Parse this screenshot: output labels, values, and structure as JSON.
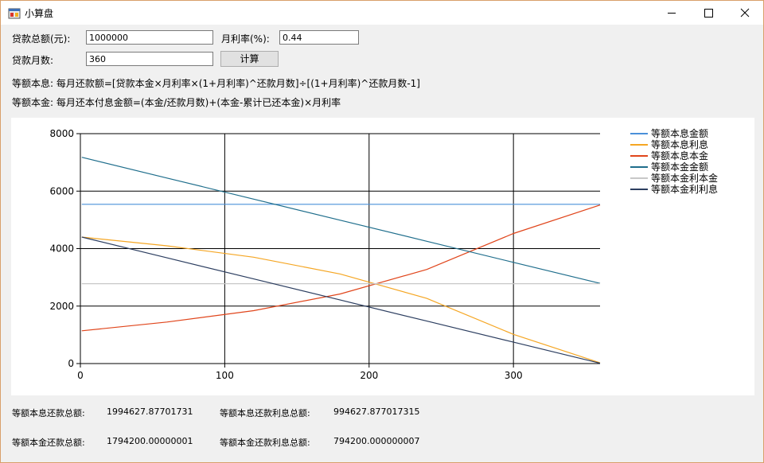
{
  "window": {
    "title": "小算盘",
    "icon": "app-window-icon",
    "controls": [
      "minimize-icon",
      "maximize-icon",
      "close-icon"
    ]
  },
  "form": {
    "loan_total_label": "贷款总额(元):",
    "loan_total_value": "1000000",
    "monthly_rate_label": "月利率(%):",
    "monthly_rate_value": "0.44",
    "months_label": "贷款月数:",
    "months_value": "360",
    "calculate_label": "计算"
  },
  "formulas": {
    "equal_installment": "等额本息: 每月还款额=[贷款本金×月利率×(1+月利率)^还款月数]÷[(1+月利率)^还款月数-1]",
    "equal_principal": "等额本金: 每月还本付息金额=(本金/还款月数)+(本金-累计已还本金)×月利率"
  },
  "chart_data": {
    "type": "line",
    "xlim": [
      0,
      360
    ],
    "ylim": [
      0,
      8000
    ],
    "x_ticks": [
      0,
      100,
      200,
      300
    ],
    "y_ticks": [
      0,
      2000,
      4000,
      6000,
      8000
    ],
    "grid": true,
    "legend_position": "right",
    "series": [
      {
        "name": "等额本息金额",
        "color": "#4a90d9",
        "x": [
          1,
          60,
          120,
          180,
          240,
          300,
          360
        ],
        "y": [
          5541,
          5541,
          5541,
          5541,
          5541,
          5541,
          5541
        ]
      },
      {
        "name": "等额本息利息",
        "color": "#f5a623",
        "x": [
          1,
          60,
          120,
          180,
          240,
          300,
          360
        ],
        "y": [
          4400,
          4096,
          3701,
          3118,
          2267,
          1015,
          24
        ]
      },
      {
        "name": "等额本息本金",
        "color": "#e0451b",
        "x": [
          1,
          60,
          120,
          180,
          240,
          300,
          360
        ],
        "y": [
          1141,
          1445,
          1840,
          2423,
          3274,
          4526,
          5517
        ]
      },
      {
        "name": "等额本金金额",
        "color": "#1f6e8c",
        "x": [
          1,
          60,
          120,
          180,
          240,
          300,
          360
        ],
        "y": [
          7178,
          6456,
          5722,
          4989,
          4256,
          3522,
          2789
        ]
      },
      {
        "name": "等额本金利本金",
        "color": "#c8c8c8",
        "x": [
          1,
          60,
          120,
          180,
          240,
          300,
          360
        ],
        "y": [
          2778,
          2778,
          2778,
          2778,
          2778,
          2778,
          2778
        ]
      },
      {
        "name": "等额本金利利息",
        "color": "#2c3e60",
        "x": [
          1,
          60,
          120,
          180,
          240,
          300,
          360
        ],
        "y": [
          4400,
          3679,
          2945,
          2212,
          1479,
          745,
          12
        ]
      }
    ]
  },
  "summary": {
    "equal_installment_total_label": "等额本息还款总额:",
    "equal_installment_total_value": "1994627.87701731",
    "equal_installment_interest_label": "等额本息还款利息总额:",
    "equal_installment_interest_value": "994627.877017315",
    "equal_principal_total_label": "等额本金还款总额:",
    "equal_principal_total_value": "1794200.00000001",
    "equal_principal_interest_label": "等额本金还款利息总额:",
    "equal_principal_interest_value": "794200.000000007"
  }
}
